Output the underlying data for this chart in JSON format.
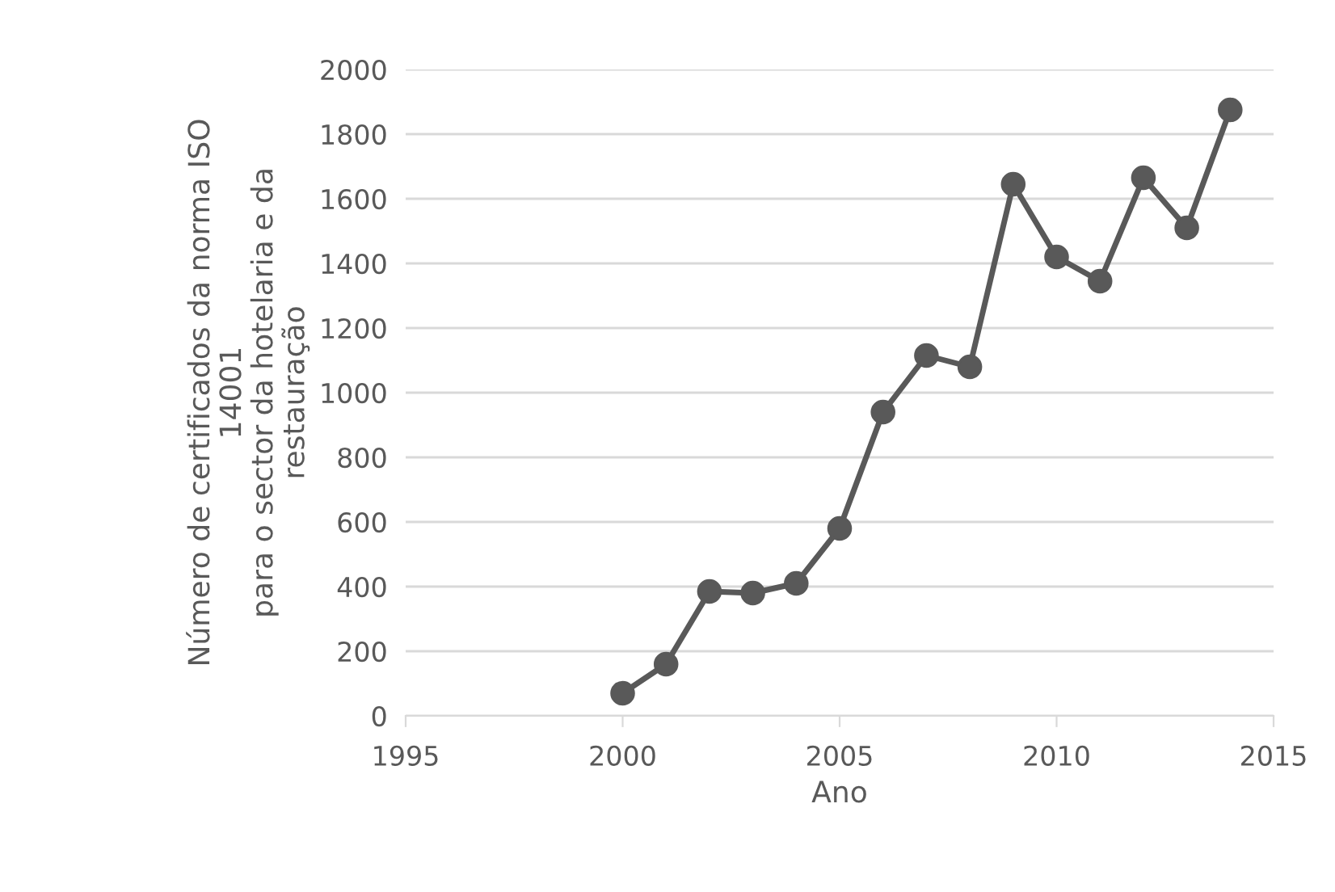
{
  "chart_data": {
    "type": "line",
    "xlabel": "Ano",
    "ylabel": "Número de certificados da norma ISO\n14001\npara o sector da hotelaria e da\nrestauração",
    "x": [
      2000,
      2001,
      2002,
      2003,
      2004,
      2005,
      2006,
      2007,
      2008,
      2009,
      2010,
      2011,
      2012,
      2013,
      2014
    ],
    "series": [
      {
        "color": "#595959",
        "values": [
          70,
          160,
          385,
          380,
          410,
          580,
          940,
          1115,
          1080,
          1645,
          1420,
          1345,
          1665,
          1510,
          1875
        ]
      }
    ],
    "xlim": [
      1995,
      2015
    ],
    "xticks": [
      1995,
      2000,
      2005,
      2010,
      2015
    ],
    "ylim": [
      0,
      2000
    ],
    "yticks": [
      0,
      200,
      400,
      600,
      800,
      1000,
      1200,
      1400,
      1600,
      1800,
      2000
    ],
    "grid": "y",
    "marker": "circle",
    "line_style": "solid",
    "legend": false
  }
}
